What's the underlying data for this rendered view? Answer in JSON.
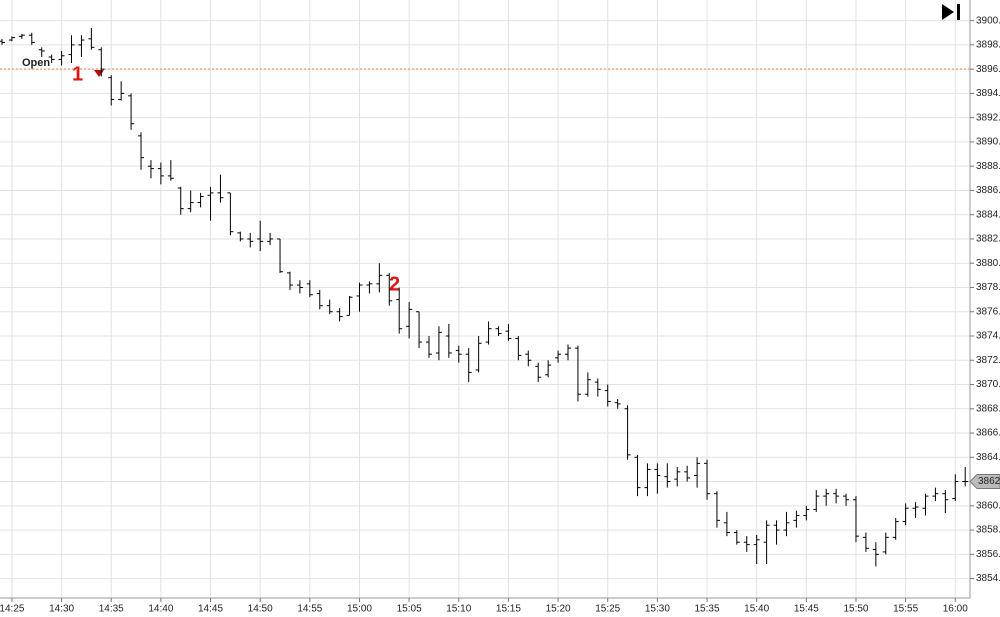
{
  "chart_data": {
    "type": "ohlc",
    "categories": [
      null,
      "14:25",
      null,
      null,
      null,
      null,
      "14:30",
      null,
      null,
      null,
      null,
      "14:35",
      null,
      null,
      null,
      null,
      "14:40",
      null,
      null,
      null,
      null,
      "14:45",
      null,
      null,
      null,
      null,
      "14:50",
      null,
      null,
      null,
      null,
      "14:55",
      null,
      null,
      null,
      null,
      "15:00",
      null,
      null,
      null,
      null,
      "15:05",
      null,
      null,
      null,
      null,
      "15:10",
      null,
      null,
      null,
      null,
      "15:15",
      null,
      null,
      null,
      null,
      "15:20",
      null,
      null,
      null,
      null,
      "15:25",
      null,
      null,
      null,
      null,
      "15:30",
      null,
      null,
      null,
      null,
      "15:35",
      null,
      null,
      null,
      null,
      "15:40",
      null,
      null,
      null,
      null,
      "15:45",
      null,
      null,
      null,
      null,
      "15:50",
      null,
      null,
      null,
      null,
      "15:55",
      null,
      null,
      null,
      null,
      "16:00",
      null
    ],
    "open": [
      3898.3,
      3898.4,
      3898.7,
      3898.8,
      3897.6,
      3897.0,
      3896.8,
      3897.2,
      3898.0,
      3898.5,
      3897.6,
      3895.3,
      3893.5,
      3893.8,
      3890.5,
      3888.0,
      3887.8,
      3887.2,
      3886.2,
      3884.5,
      3885.0,
      3885.6,
      3885.8,
      3885.8,
      3882.5,
      3882.0,
      3882.0,
      3881.8,
      3882.0,
      3879.2,
      3878.2,
      3878.3,
      3877.5,
      3876.5,
      3876.0,
      3875.7,
      3877.3,
      3878.2,
      3878.3,
      3879.0,
      3877.0,
      3874.8,
      3876.0,
      3873.5,
      3872.6,
      3874.0,
      3872.8,
      3872.5,
      3871.2,
      3873.5,
      3874.6,
      3874.4,
      3873.8,
      3872.5,
      3871.5,
      3870.8,
      3872.2,
      3872.5,
      3873.0,
      3869.2,
      3870.2,
      3869.5,
      3868.5,
      3868.0,
      3864.0,
      3861.5,
      3863.0,
      3862.4,
      3862.2,
      3862.8,
      3862.5,
      3863.5,
      3861.0,
      3858.6,
      3857.8,
      3857.0,
      3856.8,
      3857.0,
      3858.4,
      3858.0,
      3858.8,
      3859.2,
      3859.7,
      3860.8,
      3861.0,
      3860.8,
      3860.5,
      3857.4,
      3856.4,
      3856.2,
      3857.4,
      3858.7,
      3859.8,
      3859.8,
      3860.8,
      3861.0,
      3860.6,
      3862.0
    ],
    "high": [
      3898.5,
      3898.7,
      3898.9,
      3899.0,
      3897.8,
      3897.2,
      3897.5,
      3898.8,
      3898.8,
      3899.4,
      3897.8,
      3895.5,
      3895.0,
      3894.0,
      3890.8,
      3888.5,
      3888.3,
      3888.5,
      3886.3,
      3886.0,
      3885.8,
      3886.3,
      3887.3,
      3885.8,
      3882.6,
      3882.5,
      3883.5,
      3882.5,
      3882.0,
      3879.3,
      3878.6,
      3878.6,
      3877.8,
      3877.0,
      3876.3,
      3877.3,
      3878.4,
      3878.5,
      3880.0,
      3879.2,
      3878.0,
      3876.8,
      3876.0,
      3874.0,
      3874.8,
      3875.0,
      3873.2,
      3873.0,
      3874.0,
      3875.2,
      3874.8,
      3875.0,
      3874.0,
      3872.8,
      3871.8,
      3872.0,
      3872.8,
      3873.3,
      3873.2,
      3871.0,
      3870.5,
      3870.0,
      3868.8,
      3868.3,
      3864.2,
      3863.5,
      3863.5,
      3863.5,
      3863.2,
      3863.3,
      3864.0,
      3863.8,
      3861.2,
      3859.5,
      3858.0,
      3857.5,
      3857.6,
      3858.8,
      3858.8,
      3859.5,
      3859.6,
      3860.0,
      3861.3,
      3861.4,
      3861.4,
      3861.0,
      3860.8,
      3857.8,
      3857.0,
      3857.8,
      3859.0,
      3860.2,
      3860.3,
      3861.0,
      3861.5,
      3861.3,
      3862.6,
      3863.2
    ],
    "low": [
      3898.0,
      3898.3,
      3898.5,
      3898.0,
      3897.0,
      3896.5,
      3896.3,
      3896.5,
      3897.0,
      3897.6,
      3895.4,
      3893.0,
      3893.4,
      3891.0,
      3887.7,
      3887.0,
      3886.5,
      3886.8,
      3884.0,
      3884.2,
      3884.6,
      3883.5,
      3885.0,
      3882.3,
      3881.8,
      3881.3,
      3881.0,
      3881.5,
      3879.2,
      3877.8,
      3877.5,
      3877.2,
      3876.2,
      3875.8,
      3875.2,
      3875.7,
      3876.0,
      3877.5,
      3877.6,
      3876.5,
      3874.2,
      3873.8,
      3873.0,
      3872.2,
      3872.0,
      3872.2,
      3871.8,
      3870.2,
      3871.0,
      3873.3,
      3874.0,
      3873.6,
      3872.0,
      3871.5,
      3870.2,
      3870.6,
      3871.8,
      3872.0,
      3868.6,
      3869.0,
      3869.0,
      3868.2,
      3868.0,
      3863.8,
      3860.8,
      3860.8,
      3861.0,
      3861.5,
      3861.6,
      3862.0,
      3861.5,
      3860.5,
      3858.2,
      3857.5,
      3856.8,
      3856.2,
      3855.2,
      3855.2,
      3856.8,
      3857.5,
      3858.2,
      3858.8,
      3859.5,
      3860.0,
      3860.2,
      3860.0,
      3857.0,
      3856.2,
      3855.0,
      3856.0,
      3857.2,
      3858.4,
      3859.0,
      3859.2,
      3860.4,
      3859.4,
      3860.4,
      3861.6
    ],
    "close": [
      3898.2,
      3898.6,
      3898.8,
      3898.2,
      3897.5,
      3896.8,
      3897.1,
      3898.0,
      3898.4,
      3897.8,
      3896.0,
      3893.5,
      3894.0,
      3891.5,
      3888.7,
      3887.8,
      3887.2,
      3887.0,
      3884.5,
      3885.0,
      3885.5,
      3885.8,
      3885.4,
      3882.6,
      3882.0,
      3881.8,
      3881.8,
      3882.0,
      3879.3,
      3878.2,
      3878.0,
      3877.4,
      3876.5,
      3876.0,
      3875.6,
      3877.2,
      3878.2,
      3878.3,
      3879.0,
      3876.9,
      3874.6,
      3876.2,
      3873.5,
      3872.5,
      3874.3,
      3872.6,
      3872.5,
      3871.0,
      3873.4,
      3874.6,
      3874.2,
      3873.8,
      3872.4,
      3872.0,
      3870.6,
      3871.6,
      3872.5,
      3873.0,
      3869.2,
      3870.4,
      3869.6,
      3868.6,
      3868.4,
      3864.2,
      3861.5,
      3863.0,
      3862.5,
      3862.0,
      3862.8,
      3862.3,
      3863.5,
      3861.0,
      3858.8,
      3857.8,
      3857.0,
      3856.8,
      3857.2,
      3858.4,
      3858.0,
      3858.6,
      3859.2,
      3859.7,
      3860.8,
      3861.0,
      3860.8,
      3860.5,
      3857.5,
      3856.5,
      3856.0,
      3857.4,
      3858.7,
      3859.8,
      3859.9,
      3860.8,
      3861.0,
      3860.5,
      3862.0,
      3862.0
    ],
    "color": "#000000",
    "ylim": [
      3852.4,
      3901.7
    ],
    "yticks": [
      {
        "value": 3854,
        "label": "3854."
      },
      {
        "value": 3856,
        "label": "3856."
      },
      {
        "value": 3858,
        "label": "3858."
      },
      {
        "value": 3860,
        "label": "3860."
      },
      {
        "value": 3862,
        "label": "3862."
      },
      {
        "value": 3864,
        "label": "3864."
      },
      {
        "value": 3866,
        "label": "3866."
      },
      {
        "value": 3868,
        "label": "3868."
      },
      {
        "value": 3870,
        "label": "3870."
      },
      {
        "value": 3872,
        "label": "3872."
      },
      {
        "value": 3874,
        "label": "3874."
      },
      {
        "value": 3876,
        "label": "3876."
      },
      {
        "value": 3878,
        "label": "3878."
      },
      {
        "value": 3880,
        "label": "3880."
      },
      {
        "value": 3882,
        "label": "3882."
      },
      {
        "value": 3884,
        "label": "3884."
      },
      {
        "value": 3886,
        "label": "3886."
      },
      {
        "value": 3888,
        "label": "3888."
      },
      {
        "value": 3890,
        "label": "3890."
      },
      {
        "value": 3892,
        "label": "3892."
      },
      {
        "value": 3894,
        "label": "3894."
      },
      {
        "value": 3896,
        "label": "3896."
      },
      {
        "value": 3898,
        "label": "3898."
      },
      {
        "value": 3900,
        "label": "3900."
      }
    ],
    "grid": true,
    "open_line": {
      "label": "Open",
      "value": 3896,
      "color": "#e8874a"
    },
    "last_price": {
      "value": 3862,
      "label": "3862."
    },
    "annotations": [
      "1",
      "2"
    ]
  }
}
